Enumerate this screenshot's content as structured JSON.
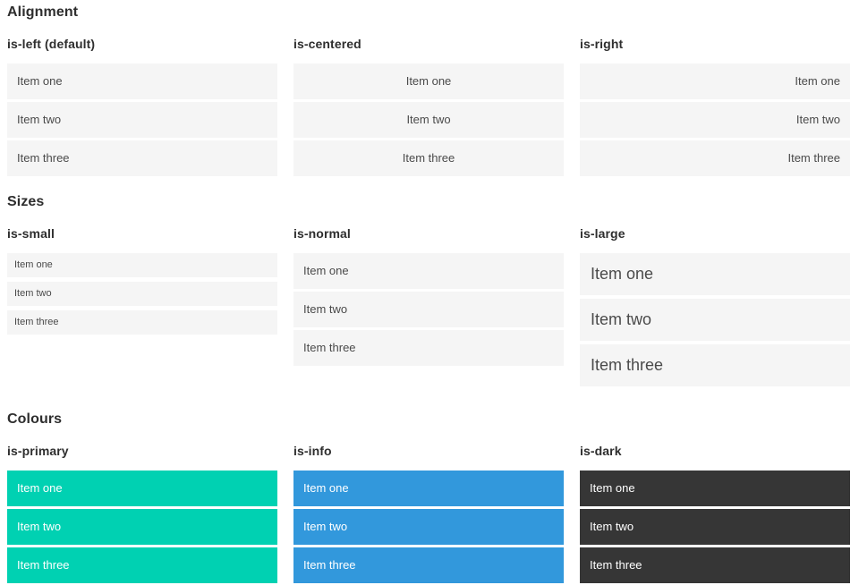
{
  "colors": {
    "item_bg": "#f5f5f5",
    "item_text": "#4a4a4a",
    "heading_text": "#2e2e2e",
    "primary": "#00d1b2",
    "info": "#3298dc",
    "dark": "#363636",
    "colored_item_text": "#ffffff"
  },
  "sections": [
    {
      "title": "Alignment",
      "columns": [
        {
          "subtitle": "is-left (default)",
          "items": [
            "Item one",
            "Item two",
            "Item three"
          ]
        },
        {
          "subtitle": "is-centered",
          "items": [
            "Item one",
            "Item two",
            "Item three"
          ]
        },
        {
          "subtitle": "is-right",
          "items": [
            "Item one",
            "Item two",
            "Item three"
          ]
        }
      ]
    },
    {
      "title": "Sizes",
      "columns": [
        {
          "subtitle": "is-small",
          "items": [
            "Item one",
            "Item two",
            "Item three"
          ]
        },
        {
          "subtitle": "is-normal",
          "items": [
            "Item one",
            "Item two",
            "Item three"
          ]
        },
        {
          "subtitle": "is-large",
          "items": [
            "Item one",
            "Item two",
            "Item three"
          ]
        }
      ]
    },
    {
      "title": "Colours",
      "columns": [
        {
          "subtitle": "is-primary",
          "items": [
            "Item one",
            "Item two",
            "Item three"
          ]
        },
        {
          "subtitle": "is-info",
          "items": [
            "Item one",
            "Item two",
            "Item three"
          ]
        },
        {
          "subtitle": "is-dark",
          "items": [
            "Item one",
            "Item two",
            "Item three"
          ]
        }
      ]
    }
  ]
}
